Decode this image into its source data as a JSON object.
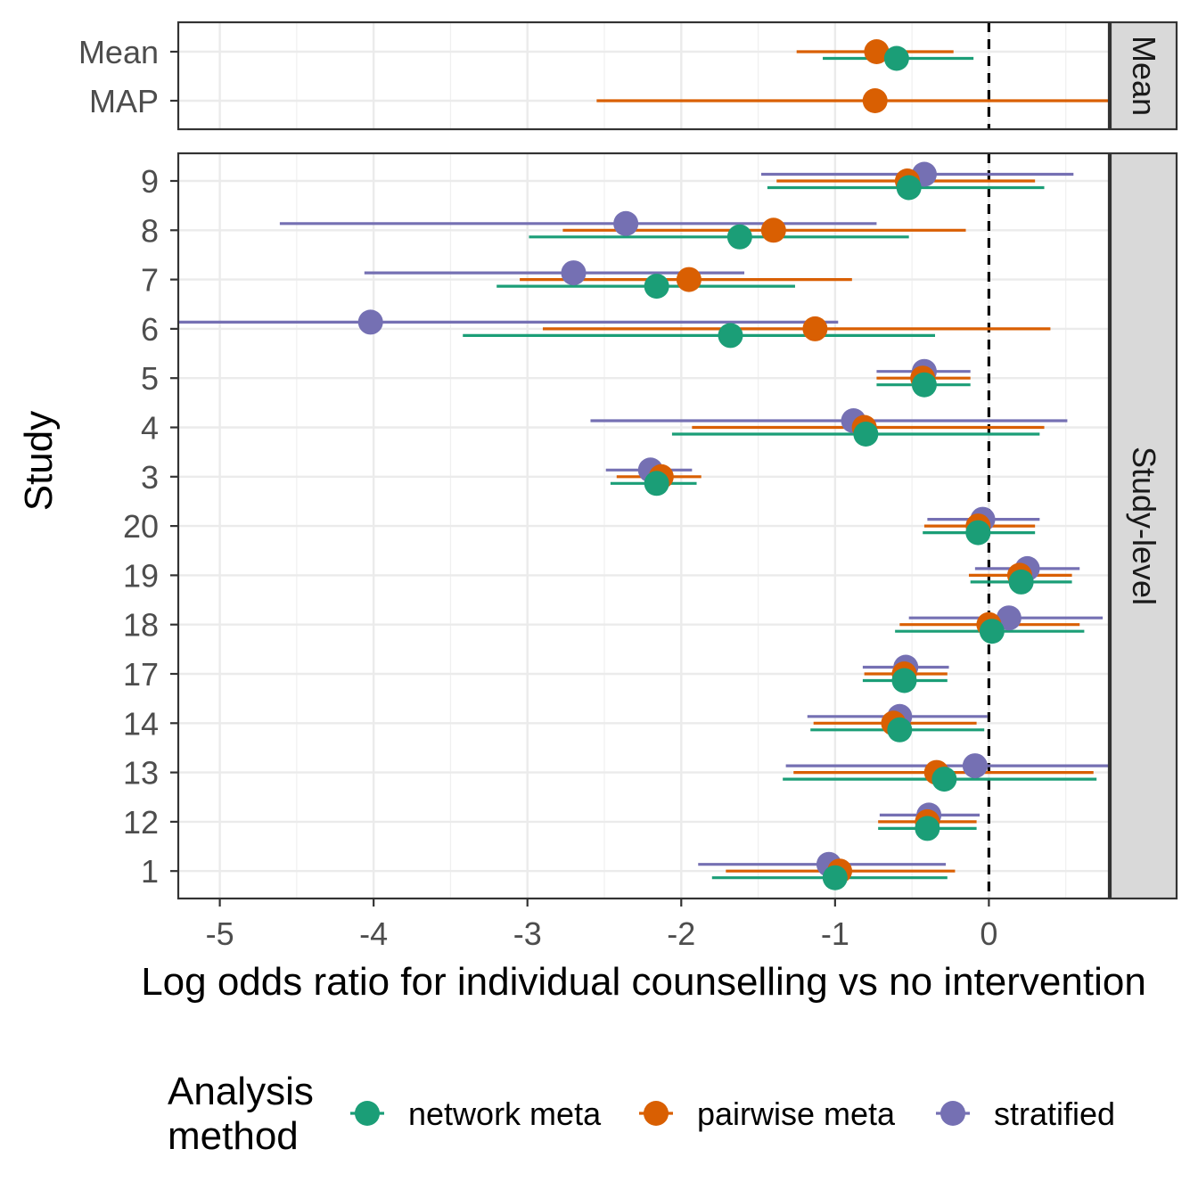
{
  "chart_data": {
    "type": "scatter",
    "subtype": "forest plot with horizontal interval bars",
    "xlabel": "Log odds ratio for individual counselling vs no intervention",
    "ylabel": "Study",
    "xlim": [
      -5.27,
      0.78
    ],
    "x_ticks": [
      "-5",
      "-4",
      "-3",
      "-2",
      "-1",
      "0"
    ],
    "reference_line": {
      "x": 0,
      "style": "dashed"
    },
    "grid": true,
    "legend": {
      "title": "Analysis\nmethod",
      "position": "bottom",
      "entries": [
        {
          "name": "network meta",
          "color": "#1b9e77"
        },
        {
          "name": "pairwise meta",
          "color": "#d95f02"
        },
        {
          "name": "stratified",
          "color": "#7570b3"
        }
      ]
    },
    "panels": [
      {
        "strip_label": "Mean",
        "rows": [
          {
            "label": "Mean",
            "estimates": [
              {
                "method": "network meta",
                "x": -0.6,
                "lo": -1.08,
                "hi": -0.1
              },
              {
                "method": "pairwise meta",
                "x": -0.73,
                "lo": -1.25,
                "hi": -0.23
              }
            ]
          },
          {
            "label": "MAP",
            "estimates": [
              {
                "method": "pairwise meta",
                "x": -0.74,
                "lo": -2.55,
                "hi": 0.78
              }
            ]
          }
        ]
      },
      {
        "strip_label": "Study-level",
        "rows": [
          {
            "label": "9",
            "estimates": [
              {
                "method": "stratified",
                "x": -0.42,
                "lo": -1.48,
                "hi": 0.55
              },
              {
                "method": "pairwise meta",
                "x": -0.53,
                "lo": -1.38,
                "hi": 0.3
              },
              {
                "method": "network meta",
                "x": -0.52,
                "lo": -1.44,
                "hi": 0.36
              }
            ]
          },
          {
            "label": "8",
            "estimates": [
              {
                "method": "stratified",
                "x": -2.36,
                "lo": -4.61,
                "hi": -0.73
              },
              {
                "method": "pairwise meta",
                "x": -1.4,
                "lo": -2.77,
                "hi": -0.15
              },
              {
                "method": "network meta",
                "x": -1.62,
                "lo": -2.99,
                "hi": -0.52
              }
            ]
          },
          {
            "label": "7",
            "estimates": [
              {
                "method": "stratified",
                "x": -2.7,
                "lo": -4.06,
                "hi": -1.59
              },
              {
                "method": "pairwise meta",
                "x": -1.95,
                "lo": -3.05,
                "hi": -0.89
              },
              {
                "method": "network meta",
                "x": -2.16,
                "lo": -3.2,
                "hi": -1.26
              }
            ]
          },
          {
            "label": "6",
            "estimates": [
              {
                "method": "stratified",
                "x": -4.02,
                "lo": -5.27,
                "hi": -0.98
              },
              {
                "method": "pairwise meta",
                "x": -1.13,
                "lo": -2.9,
                "hi": 0.4
              },
              {
                "method": "network meta",
                "x": -1.68,
                "lo": -3.42,
                "hi": -0.35
              }
            ]
          },
          {
            "label": "5",
            "estimates": [
              {
                "method": "stratified",
                "x": -0.42,
                "lo": -0.73,
                "hi": -0.12
              },
              {
                "method": "pairwise meta",
                "x": -0.43,
                "lo": -0.73,
                "hi": -0.12
              },
              {
                "method": "network meta",
                "x": -0.42,
                "lo": -0.73,
                "hi": -0.12
              }
            ]
          },
          {
            "label": "4",
            "estimates": [
              {
                "method": "stratified",
                "x": -0.88,
                "lo": -2.59,
                "hi": 0.51
              },
              {
                "method": "pairwise meta",
                "x": -0.81,
                "lo": -1.93,
                "hi": 0.36
              },
              {
                "method": "network meta",
                "x": -0.8,
                "lo": -2.06,
                "hi": 0.33
              }
            ]
          },
          {
            "label": "3",
            "estimates": [
              {
                "method": "stratified",
                "x": -2.2,
                "lo": -2.49,
                "hi": -1.93
              },
              {
                "method": "pairwise meta",
                "x": -2.13,
                "lo": -2.42,
                "hi": -1.87
              },
              {
                "method": "network meta",
                "x": -2.16,
                "lo": -2.46,
                "hi": -1.9
              }
            ]
          },
          {
            "label": "20",
            "estimates": [
              {
                "method": "stratified",
                "x": -0.04,
                "lo": -0.4,
                "hi": 0.33
              },
              {
                "method": "pairwise meta",
                "x": -0.07,
                "lo": -0.42,
                "hi": 0.3
              },
              {
                "method": "network meta",
                "x": -0.07,
                "lo": -0.43,
                "hi": 0.3
              }
            ]
          },
          {
            "label": "19",
            "estimates": [
              {
                "method": "stratified",
                "x": 0.25,
                "lo": -0.09,
                "hi": 0.59
              },
              {
                "method": "pairwise meta",
                "x": 0.2,
                "lo": -0.13,
                "hi": 0.54
              },
              {
                "method": "network meta",
                "x": 0.21,
                "lo": -0.12,
                "hi": 0.54
              }
            ]
          },
          {
            "label": "18",
            "estimates": [
              {
                "method": "stratified",
                "x": 0.13,
                "lo": -0.52,
                "hi": 0.74
              },
              {
                "method": "pairwise meta",
                "x": 0.0,
                "lo": -0.58,
                "hi": 0.59
              },
              {
                "method": "network meta",
                "x": 0.02,
                "lo": -0.61,
                "hi": 0.62
              }
            ]
          },
          {
            "label": "17",
            "estimates": [
              {
                "method": "stratified",
                "x": -0.54,
                "lo": -0.82,
                "hi": -0.26
              },
              {
                "method": "pairwise meta",
                "x": -0.55,
                "lo": -0.81,
                "hi": -0.27
              },
              {
                "method": "network meta",
                "x": -0.55,
                "lo": -0.82,
                "hi": -0.27
              }
            ]
          },
          {
            "label": "14",
            "estimates": [
              {
                "method": "stratified",
                "x": -0.58,
                "lo": -1.18,
                "hi": -0.01
              },
              {
                "method": "pairwise meta",
                "x": -0.62,
                "lo": -1.14,
                "hi": -0.08
              },
              {
                "method": "network meta",
                "x": -0.58,
                "lo": -1.16,
                "hi": -0.03
              }
            ]
          },
          {
            "label": "13",
            "estimates": [
              {
                "method": "stratified",
                "x": -0.09,
                "lo": -1.32,
                "hi": 0.78
              },
              {
                "method": "pairwise meta",
                "x": -0.34,
                "lo": -1.27,
                "hi": 0.68
              },
              {
                "method": "network meta",
                "x": -0.29,
                "lo": -1.34,
                "hi": 0.7
              }
            ]
          },
          {
            "label": "12",
            "estimates": [
              {
                "method": "stratified",
                "x": -0.39,
                "lo": -0.71,
                "hi": -0.06
              },
              {
                "method": "pairwise meta",
                "x": -0.4,
                "lo": -0.72,
                "hi": -0.08
              },
              {
                "method": "network meta",
                "x": -0.4,
                "lo": -0.72,
                "hi": -0.08
              }
            ]
          },
          {
            "label": "1",
            "estimates": [
              {
                "method": "stratified",
                "x": -1.04,
                "lo": -1.89,
                "hi": -0.28
              },
              {
                "method": "pairwise meta",
                "x": -0.97,
                "lo": -1.71,
                "hi": -0.22
              },
              {
                "method": "network meta",
                "x": -1.0,
                "lo": -1.8,
                "hi": -0.27
              }
            ]
          }
        ]
      }
    ]
  }
}
